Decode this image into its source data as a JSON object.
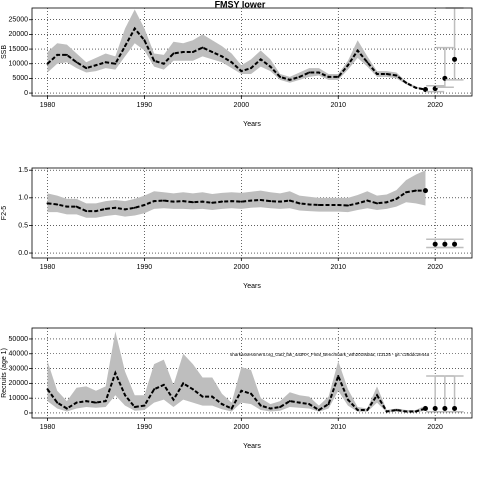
{
  "chart_data": [
    {
      "type": "line",
      "title": "FMSY lower",
      "ylabel": "SSB",
      "xlabel": "Years",
      "x": [
        1980,
        1981,
        1982,
        1983,
        1984,
        1985,
        1986,
        1987,
        1988,
        1989,
        1990,
        1991,
        1992,
        1993,
        1994,
        1995,
        1996,
        1997,
        1998,
        1999,
        2000,
        2001,
        2002,
        2003,
        2004,
        2005,
        2006,
        2007,
        2008,
        2009,
        2010,
        2011,
        2012,
        2013,
        2014,
        2015,
        2016,
        2017,
        2018,
        2019
      ],
      "values": [
        10000,
        13000,
        13000,
        10500,
        8500,
        9500,
        10500,
        10000,
        16000,
        22000,
        18000,
        11000,
        10000,
        13500,
        14000,
        14000,
        15500,
        14000,
        12500,
        10500,
        7500,
        8500,
        11500,
        9000,
        5500,
        4500,
        5500,
        7000,
        7000,
        5500,
        5500,
        9500,
        14500,
        10500,
        6500,
        6500,
        6000,
        3500,
        1800,
        1200
      ],
      "upper": [
        14000,
        17000,
        16500,
        13500,
        10500,
        12000,
        13500,
        12500,
        22000,
        28500,
        22000,
        13500,
        13000,
        17500,
        17000,
        18000,
        20000,
        18000,
        16000,
        13500,
        9500,
        11500,
        14500,
        11500,
        6500,
        5500,
        7000,
        8500,
        8500,
        6500,
        6500,
        11000,
        18000,
        12500,
        7500,
        7500,
        7000,
        4000,
        2200,
        1500
      ],
      "lower": [
        7000,
        10000,
        10500,
        8500,
        7000,
        7500,
        8500,
        8000,
        12500,
        17000,
        14500,
        9000,
        8000,
        11000,
        11000,
        11000,
        12500,
        11500,
        10500,
        8500,
        6500,
        6500,
        9000,
        7500,
        4500,
        3500,
        4500,
        5500,
        6000,
        4500,
        4500,
        8000,
        12000,
        9000,
        5500,
        5500,
        5000,
        3000,
        1500,
        900
      ],
      "proj_x": [
        2020,
        2021,
        2022
      ],
      "proj_values": [
        1500,
        5000,
        11500
      ],
      "proj_lower": [
        500,
        2000,
        4500
      ],
      "proj_upper": [
        2500,
        15500,
        29000
      ],
      "color": "#000000",
      "band_color": "#bebebe",
      "xlim": [
        1978.4,
        2023.8
      ],
      "xticks": [
        1980,
        1990,
        2000,
        2010,
        2020
      ],
      "ylim": [
        -1000,
        29000
      ],
      "yticks": [
        0,
        5000,
        10000,
        15000,
        20000,
        25000
      ],
      "grid": true
    },
    {
      "type": "line",
      "ylabel": "F2-5",
      "xlabel": "Years",
      "x": [
        1980,
        1981,
        1982,
        1983,
        1984,
        1985,
        1986,
        1987,
        1988,
        1989,
        1990,
        1991,
        1992,
        1993,
        1994,
        1995,
        1996,
        1997,
        1998,
        1999,
        2000,
        2001,
        2002,
        2003,
        2004,
        2005,
        2006,
        2007,
        2008,
        2009,
        2010,
        2011,
        2012,
        2013,
        2014,
        2015,
        2016,
        2017,
        2018,
        2019
      ],
      "values": [
        0.9,
        0.88,
        0.84,
        0.84,
        0.76,
        0.76,
        0.8,
        0.82,
        0.79,
        0.82,
        0.87,
        0.94,
        0.95,
        0.93,
        0.94,
        0.92,
        0.93,
        0.91,
        0.93,
        0.94,
        0.93,
        0.95,
        0.96,
        0.94,
        0.93,
        0.95,
        0.9,
        0.88,
        0.87,
        0.87,
        0.87,
        0.86,
        0.9,
        0.95,
        0.9,
        0.92,
        0.98,
        1.1,
        1.13,
        1.13
      ],
      "upper": [
        1.08,
        1.04,
        0.98,
        0.98,
        0.9,
        0.9,
        0.94,
        0.96,
        0.94,
        0.98,
        1.04,
        1.12,
        1.1,
        1.08,
        1.1,
        1.08,
        1.1,
        1.07,
        1.09,
        1.1,
        1.09,
        1.11,
        1.13,
        1.1,
        1.08,
        1.12,
        1.04,
        1.02,
        1.0,
        1.0,
        1.0,
        1.0,
        1.05,
        1.12,
        1.04,
        1.06,
        1.14,
        1.32,
        1.42,
        1.5
      ],
      "lower": [
        0.74,
        0.74,
        0.7,
        0.7,
        0.64,
        0.64,
        0.67,
        0.69,
        0.66,
        0.68,
        0.72,
        0.8,
        0.81,
        0.8,
        0.8,
        0.79,
        0.8,
        0.78,
        0.8,
        0.81,
        0.8,
        0.82,
        0.83,
        0.81,
        0.8,
        0.81,
        0.77,
        0.76,
        0.75,
        0.75,
        0.75,
        0.74,
        0.78,
        0.81,
        0.78,
        0.8,
        0.84,
        0.92,
        0.9,
        0.86
      ],
      "proj_x": [
        2020,
        2021,
        2022
      ],
      "proj_values": [
        0.16,
        0.16,
        0.16
      ],
      "proj_lower": [
        0.1,
        0.1,
        0.1
      ],
      "proj_upper": [
        0.25,
        0.25,
        0.25
      ],
      "color": "#000000",
      "band_color": "#bebebe",
      "xlim": [
        1978.4,
        2023.8
      ],
      "xticks": [
        1980,
        1990,
        2000,
        2010,
        2020
      ],
      "ylim": [
        -0.09,
        1.54
      ],
      "yticks": [
        {
          "value": 0,
          "label": "0.0"
        },
        0.5,
        {
          "value": 1,
          "label": "1.0"
        },
        1.5
      ],
      "grid": true
    },
    {
      "type": "line",
      "ylabel": "Recruits (age 1)",
      "xlabel": "Years",
      "annotation": "sharkassessment.org_Gad_fak_4a3RA_Final_Benchmark_wth2019data; r13125 - git: c28ddc2e44a",
      "x": [
        1980,
        1981,
        1982,
        1983,
        1984,
        1985,
        1986,
        1987,
        1988,
        1989,
        1990,
        1991,
        1992,
        1993,
        1994,
        1995,
        1996,
        1997,
        1998,
        1999,
        2000,
        2001,
        2002,
        2003,
        2004,
        2005,
        2006,
        2007,
        2008,
        2009,
        2010,
        2011,
        2012,
        2013,
        2014,
        2015,
        2016,
        2017,
        2018,
        2019
      ],
      "values": [
        16000,
        7000,
        3000,
        7000,
        8000,
        7000,
        8000,
        27000,
        12000,
        4000,
        5000,
        16000,
        19000,
        9000,
        20000,
        16000,
        11000,
        11000,
        6000,
        3000,
        15000,
        13000,
        5000,
        3000,
        4000,
        8000,
        7000,
        6000,
        2000,
        6000,
        25000,
        9000,
        2000,
        2000,
        12000,
        1000,
        2000,
        1000,
        1000,
        3000
      ],
      "upper": [
        35000,
        15000,
        8000,
        17000,
        18000,
        15000,
        18000,
        55000,
        28000,
        12000,
        12000,
        33000,
        36000,
        19000,
        40000,
        33000,
        24000,
        24000,
        13000,
        7000,
        31000,
        29000,
        10000,
        6000,
        8000,
        14000,
        12000,
        11000,
        5000,
        11000,
        35000,
        16000,
        4000,
        3000,
        18000,
        2000,
        3000,
        2000,
        2000,
        5000
      ],
      "lower": [
        8000,
        3000,
        1000,
        3000,
        4000,
        3500,
        4000,
        12000,
        5000,
        1500,
        2000,
        7000,
        9000,
        4000,
        9000,
        7000,
        5000,
        5000,
        2500,
        1000,
        7000,
        6000,
        2000,
        1000,
        1500,
        4000,
        3500,
        3000,
        800,
        3000,
        15000,
        5000,
        800,
        800,
        7000,
        400,
        800,
        400,
        400,
        1500
      ],
      "proj_x": [
        2020,
        2021,
        2022
      ],
      "proj_values": [
        3000,
        3000,
        3000
      ],
      "proj_lower": [
        800,
        800,
        800
      ],
      "proj_upper": [
        25000,
        25000,
        25000
      ],
      "color": "#000000",
      "band_color": "#bebebe",
      "xlim": [
        1978.4,
        2023.8
      ],
      "xticks": [
        1980,
        1990,
        2000,
        2010,
        2020
      ],
      "ylim": [
        -3400,
        57400
      ],
      "yticks": [
        0,
        10000,
        20000,
        30000,
        40000,
        50000
      ],
      "grid": true
    }
  ]
}
